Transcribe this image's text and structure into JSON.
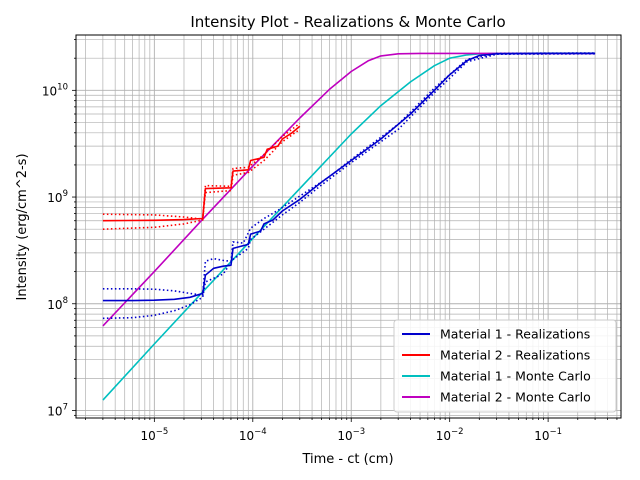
{
  "chart_data": {
    "type": "line",
    "title": "Intensity Plot - Realizations & Monte Carlo",
    "xlabel": "Time - ct (cm)",
    "ylabel": "Intensity (erg/cm^2-s)",
    "xscale": "log",
    "yscale": "log",
    "xlim": [
      1.6e-06,
      0.55
    ],
    "ylim": [
      8500000.0,
      33000000000.0
    ],
    "grid": true,
    "legend_position": "lower-right",
    "x_ticks": [
      {
        "value": 1e-05,
        "base": "10",
        "exp": "−5"
      },
      {
        "value": 0.0001,
        "base": "10",
        "exp": "−4"
      },
      {
        "value": 0.001,
        "base": "10",
        "exp": "−3"
      },
      {
        "value": 0.01,
        "base": "10",
        "exp": "−2"
      },
      {
        "value": 0.1,
        "base": "10",
        "exp": "−1"
      }
    ],
    "y_ticks": [
      {
        "value": 10000000.0,
        "base": "10",
        "exp": "7"
      },
      {
        "value": 100000000.0,
        "base": "10",
        "exp": "8"
      },
      {
        "value": 1000000000.0,
        "base": "10",
        "exp": "9"
      },
      {
        "value": 10000000000.0,
        "base": "10",
        "exp": "10"
      }
    ],
    "series": [
      {
        "name": "Material 1 - Realizations",
        "color": "#0000cc",
        "style": "solid",
        "in_legend": true,
        "points": [
          [
            3e-06,
            107000000.0
          ],
          [
            6e-06,
            107000000.0
          ],
          [
            1e-05,
            108000000.0
          ],
          [
            1.6e-05,
            110000000.0
          ],
          [
            2.3e-05,
            115000000.0
          ],
          [
            3.1e-05,
            125000000.0
          ],
          [
            3.3e-05,
            185000000.0
          ],
          [
            4e-05,
            215000000.0
          ],
          [
            5e-05,
            225000000.0
          ],
          [
            6e-05,
            230000000.0
          ],
          [
            6.3e-05,
            330000000.0
          ],
          [
            7.5e-05,
            345000000.0
          ],
          [
            9e-05,
            360000000.0
          ],
          [
            9.5e-05,
            450000000.0
          ],
          [
            0.00012,
            480000000.0
          ],
          [
            0.00013,
            560000000.0
          ],
          [
            0.00016,
            610000000.0
          ],
          [
            0.0002,
            740000000.0
          ],
          [
            0.0003,
            950000000.0
          ],
          [
            0.0005,
            1380000000.0
          ],
          [
            0.001,
            2200000000.0
          ],
          [
            0.002,
            3500000000.0
          ],
          [
            0.004,
            6000000000.0
          ],
          [
            0.007,
            10000000000.0
          ],
          [
            0.01,
            14000000000.0
          ],
          [
            0.015,
            19000000000.0
          ],
          [
            0.02,
            21200000000.0
          ],
          [
            0.03,
            22000000000.0
          ],
          [
            0.1,
            22200000000.0
          ],
          [
            0.3,
            22200000000.0
          ]
        ]
      },
      {
        "name": "Material 1 - Realizations (upper bound)",
        "color": "#0000cc",
        "style": "dotted",
        "in_legend": false,
        "points": [
          [
            3e-06,
            138000000.0
          ],
          [
            6e-06,
            138000000.0
          ],
          [
            1e-05,
            137000000.0
          ],
          [
            1.6e-05,
            132000000.0
          ],
          [
            2.3e-05,
            125000000.0
          ],
          [
            3.1e-05,
            120000000.0
          ],
          [
            3.3e-05,
            250000000.0
          ],
          [
            4e-05,
            265000000.0
          ],
          [
            5e-05,
            255000000.0
          ],
          [
            6e-05,
            250000000.0
          ],
          [
            6.3e-05,
            380000000.0
          ],
          [
            8e-05,
            370000000.0
          ],
          [
            9.5e-05,
            510000000.0
          ],
          [
            0.00013,
            630000000.0
          ],
          [
            0.00018,
            750000000.0
          ],
          [
            0.0003,
            1020000000.0
          ],
          [
            0.0006,
            1550000000.0
          ],
          [
            0.001,
            2250000000.0
          ],
          [
            0.003,
            4800000000.0
          ],
          [
            0.007,
            10500000000.0
          ],
          [
            0.015,
            19500000000.0
          ],
          [
            0.03,
            22200000000.0
          ],
          [
            0.3,
            22400000000.0
          ]
        ]
      },
      {
        "name": "Material 1 - Realizations (lower bound)",
        "color": "#0000cc",
        "style": "dotted",
        "in_legend": false,
        "points": [
          [
            3e-06,
            73000000.0
          ],
          [
            6e-06,
            74000000.0
          ],
          [
            1e-05,
            78000000.0
          ],
          [
            1.6e-05,
            86000000.0
          ],
          [
            2.3e-05,
            98000000.0
          ],
          [
            3.1e-05,
            115000000.0
          ],
          [
            3.3e-05,
            160000000.0
          ],
          [
            5e-05,
            190000000.0
          ],
          [
            6.3e-05,
            260000000.0
          ],
          [
            9e-05,
            330000000.0
          ],
          [
            9.5e-05,
            400000000.0
          ],
          [
            0.00013,
            500000000.0
          ],
          [
            0.0002,
            680000000.0
          ],
          [
            0.0003,
            890000000.0
          ],
          [
            0.0005,
            1300000000.0
          ],
          [
            0.001,
            2100000000.0
          ],
          [
            0.003,
            4300000000.0
          ],
          [
            0.007,
            9500000000.0
          ],
          [
            0.015,
            18500000000.0
          ],
          [
            0.03,
            21800000000.0
          ],
          [
            0.3,
            22000000000.0
          ]
        ]
      },
      {
        "name": "Material 2 - Realizations",
        "color": "#ff0000",
        "style": "solid",
        "in_legend": true,
        "points": [
          [
            3e-06,
            600000000.0
          ],
          [
            1e-05,
            605000000.0
          ],
          [
            2e-05,
            615000000.0
          ],
          [
            3.1e-05,
            630000000.0
          ],
          [
            3.3e-05,
            1200000000.0
          ],
          [
            6e-05,
            1220000000.0
          ],
          [
            6.3e-05,
            1750000000.0
          ],
          [
            9e-05,
            1800000000.0
          ],
          [
            9.5e-05,
            2200000000.0
          ],
          [
            0.00013,
            2350000000.0
          ],
          [
            0.00014,
            2800000000.0
          ],
          [
            0.00018,
            3000000000.0
          ],
          [
            0.0002,
            3500000000.0
          ],
          [
            0.00025,
            4000000000.0
          ],
          [
            0.0003,
            4600000000.0
          ]
        ]
      },
      {
        "name": "Material 2 - Realizations (upper bound)",
        "color": "#ff0000",
        "style": "dotted",
        "in_legend": false,
        "points": [
          [
            3e-06,
            690000000.0
          ],
          [
            1e-05,
            680000000.0
          ],
          [
            2e-05,
            650000000.0
          ],
          [
            3.1e-05,
            620000000.0
          ],
          [
            3.3e-05,
            1280000000.0
          ],
          [
            6e-05,
            1260000000.0
          ],
          [
            6.3e-05,
            1850000000.0
          ],
          [
            9e-05,
            1900000000.0
          ],
          [
            0.00013,
            2500000000.0
          ],
          [
            0.0002,
            3700000000.0
          ],
          [
            0.0003,
            4900000000.0
          ]
        ]
      },
      {
        "name": "Material 2 - Realizations (lower bound)",
        "color": "#ff0000",
        "style": "dotted",
        "in_legend": false,
        "points": [
          [
            3e-06,
            500000000.0
          ],
          [
            1e-05,
            520000000.0
          ],
          [
            2e-05,
            560000000.0
          ],
          [
            3.1e-05,
            610000000.0
          ],
          [
            3.3e-05,
            1100000000.0
          ],
          [
            6e-05,
            1150000000.0
          ],
          [
            6.3e-05,
            1600000000.0
          ],
          [
            9e-05,
            1700000000.0
          ],
          [
            0.00013,
            2200000000.0
          ],
          [
            0.0002,
            3300000000.0
          ],
          [
            0.0003,
            4300000000.0
          ]
        ]
      },
      {
        "name": "Material 1 - Monte Carlo",
        "color": "#00bfbf",
        "style": "solid",
        "in_legend": true,
        "points": [
          [
            3e-06,
            12500000.0
          ],
          [
            1e-05,
            42000000.0
          ],
          [
            3e-05,
            125000000.0
          ],
          [
            0.0001,
            410000000.0
          ],
          [
            0.0003,
            1200000000.0
          ],
          [
            0.001,
            3900000000.0
          ],
          [
            0.002,
            7200000000.0
          ],
          [
            0.004,
            12000000000.0
          ],
          [
            0.007,
            17000000000.0
          ],
          [
            0.01,
            20000000000.0
          ],
          [
            0.015,
            21500000000.0
          ],
          [
            0.02,
            22000000000.0
          ],
          [
            0.03,
            22200000000.0
          ],
          [
            0.1,
            22300000000.0
          ],
          [
            0.3,
            22300000000.0
          ]
        ]
      },
      {
        "name": "Material 2 - Monte Carlo",
        "color": "#bf00bf",
        "style": "solid",
        "in_legend": true,
        "points": [
          [
            3e-06,
            62000000.0
          ],
          [
            1e-05,
            200000000.0
          ],
          [
            3e-05,
            600000000.0
          ],
          [
            0.0001,
            1950000000.0
          ],
          [
            0.0003,
            5500000000.0
          ],
          [
            0.0006,
            10200000000.0
          ],
          [
            0.001,
            15000000000.0
          ],
          [
            0.0015,
            19000000000.0
          ],
          [
            0.002,
            21000000000.0
          ],
          [
            0.003,
            22000000000.0
          ],
          [
            0.005,
            22200000000.0
          ],
          [
            0.01,
            22200000000.0
          ],
          [
            0.3,
            22200000000.0
          ]
        ]
      }
    ]
  }
}
